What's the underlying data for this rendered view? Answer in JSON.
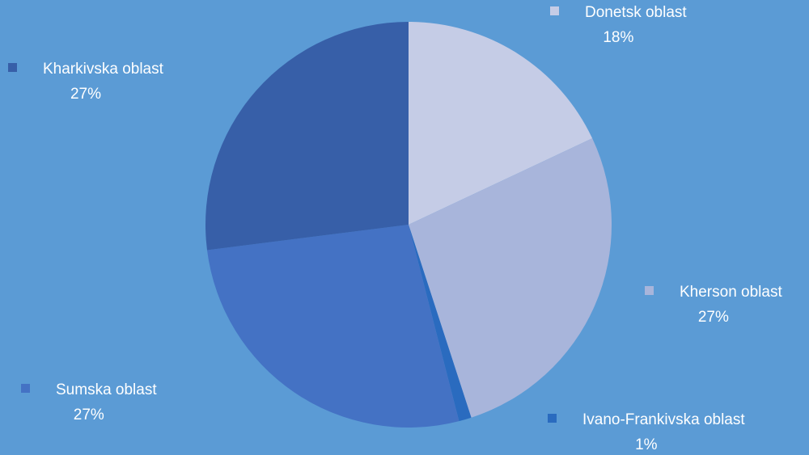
{
  "chart_data": {
    "type": "pie",
    "title": "",
    "background": "#5b9bd5",
    "slices": [
      {
        "label": "Donetsk oblast",
        "value": 18,
        "value_label": "18%",
        "color": "#c5cce6"
      },
      {
        "label": "Kherson oblast",
        "value": 27,
        "value_label": "27%",
        "color": "#a8b5db"
      },
      {
        "label": "Ivano-Frankivska oblast",
        "value": 1,
        "value_label": "1%",
        "color": "#2a6bbf"
      },
      {
        "label": "Sumska oblast",
        "value": 27,
        "value_label": "27%",
        "color": "#4472c4"
      },
      {
        "label": "Kharkivska oblast",
        "value": 27,
        "value_label": "27%",
        "color": "#375fa8"
      }
    ]
  }
}
